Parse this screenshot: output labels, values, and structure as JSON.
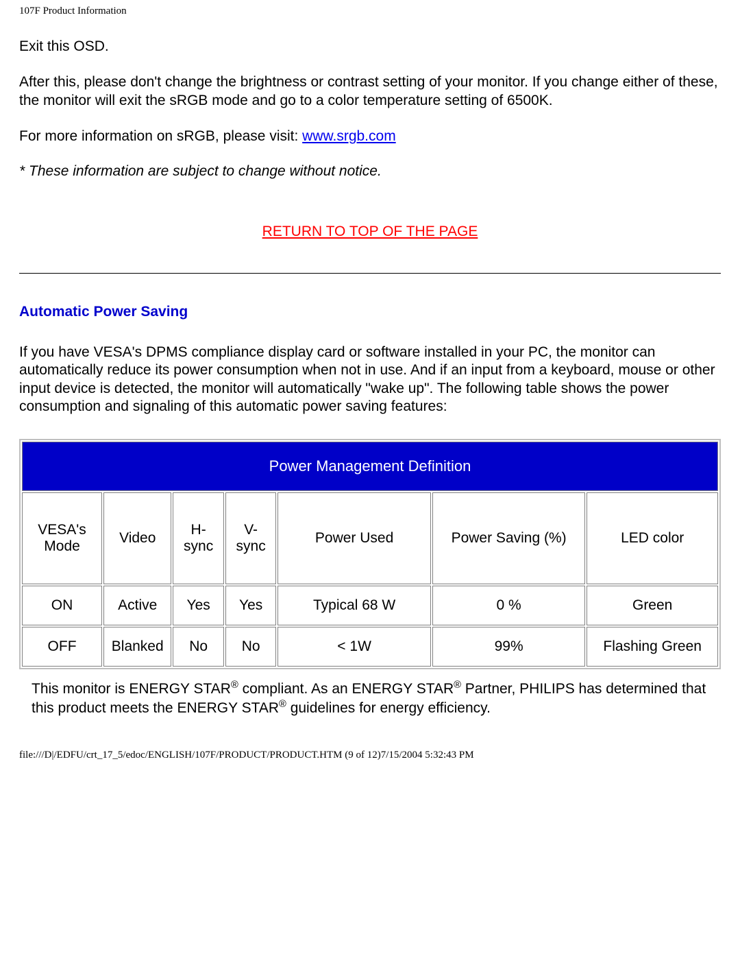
{
  "header_small": "107F Product Information",
  "para1": "Exit this OSD.",
  "para2": "After this, please don't change the brightness or contrast setting of your monitor. If you change either of these, the monitor will exit the sRGB mode and go to a color temperature setting of 6500K.",
  "para3_pre": "For more information on sRGB, please visit: ",
  "para3_link": "www.srgb.com",
  "note": "* These information are subject to change without notice.",
  "return_link": "RETURN TO TOP OF THE PAGE",
  "section_heading": "Automatic Power Saving",
  "section_para": "If you have VESA's DPMS compliance display card or software installed in your PC, the monitor can automatically reduce its power consumption when not in use. And if an input from a keyboard, mouse or other input device is detected, the monitor will automatically \"wake up\". The following table shows the power consumption and signaling of this automatic power saving features:",
  "table": {
    "title": "Power Management Definition",
    "title_bg": "#0000c8",
    "title_color": "#ffffff",
    "border_color": "#808080",
    "columns": [
      "VESA's Mode",
      "Video",
      "H-sync",
      "V-sync",
      "Power Used",
      "Power Saving (%)",
      "LED color"
    ],
    "col_widths_pct": [
      11,
      9,
      7,
      7,
      21,
      21,
      18
    ],
    "rows": [
      [
        "ON",
        "Active",
        "Yes",
        "Yes",
        "Typical 68 W",
        "0 %",
        "Green"
      ],
      [
        "OFF",
        "Blanked",
        "No",
        "No",
        "< 1W",
        "99%",
        "Flashing Green"
      ]
    ]
  },
  "after_table_pre1": "This monitor is ENERGY STAR",
  "reg": "®",
  "after_table_mid1": " compliant. As an ENERGY STAR",
  "after_table_mid2": " Partner, PHILIPS has determined that this product meets the ENERGY STAR",
  "after_table_post": " guidelines for energy efficiency.",
  "footer": "file:///D|/EDFU/crt_17_5/edoc/ENGLISH/107F/PRODUCT/PRODUCT.HTM (9 of 12)7/15/2004 5:32:43 PM"
}
